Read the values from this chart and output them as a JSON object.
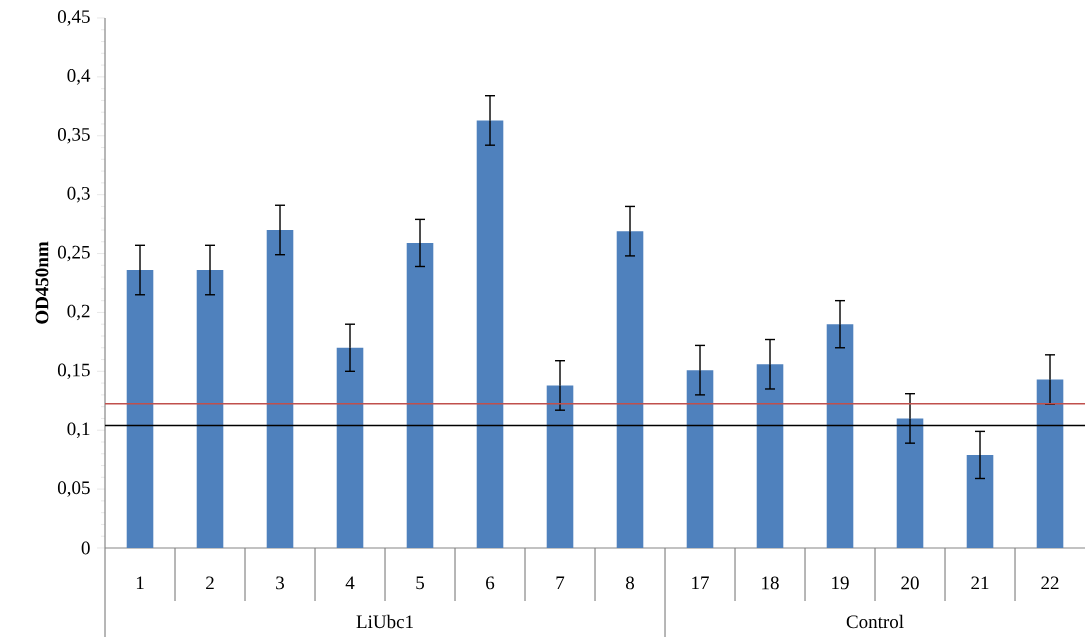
{
  "chart_data": {
    "type": "bar",
    "ylabel": "OD450nm",
    "categories": [
      "1",
      "2",
      "3",
      "4",
      "5",
      "6",
      "7",
      "8",
      "17",
      "18",
      "19",
      "20",
      "21",
      "22"
    ],
    "values": [
      0.236,
      0.236,
      0.27,
      0.17,
      0.259,
      0.363,
      0.138,
      0.269,
      0.151,
      0.156,
      0.19,
      0.11,
      0.079,
      0.143
    ],
    "errors": [
      0.021,
      0.021,
      0.021,
      0.02,
      0.02,
      0.021,
      0.021,
      0.021,
      0.021,
      0.021,
      0.02,
      0.021,
      0.02,
      0.021
    ],
    "color": "#4f81bd",
    "ylim": [
      0,
      0.45
    ],
    "yticks": [
      0,
      {
        "value": 0.05,
        "label": "0,05"
      },
      {
        "value": 0.1,
        "label": "0,1"
      },
      {
        "value": 0.15,
        "label": "0,15"
      },
      {
        "value": 0.2,
        "label": "0,2"
      },
      {
        "value": 0.25,
        "label": "0,25"
      },
      {
        "value": 0.3,
        "label": "0,3"
      },
      {
        "value": 0.35,
        "label": "0,35"
      },
      {
        "value": 0.4,
        "label": "0,4"
      },
      {
        "value": 0.45,
        "label": "0,45"
      }
    ],
    "ref_lines": [
      {
        "axis": "y",
        "value": 0.1224,
        "color": "#c0504d"
      },
      {
        "axis": "y",
        "value": 0.104,
        "color": "#000000"
      }
    ],
    "annotations": [
      "LiUbc1",
      "Control"
    ],
    "grid": false
  }
}
